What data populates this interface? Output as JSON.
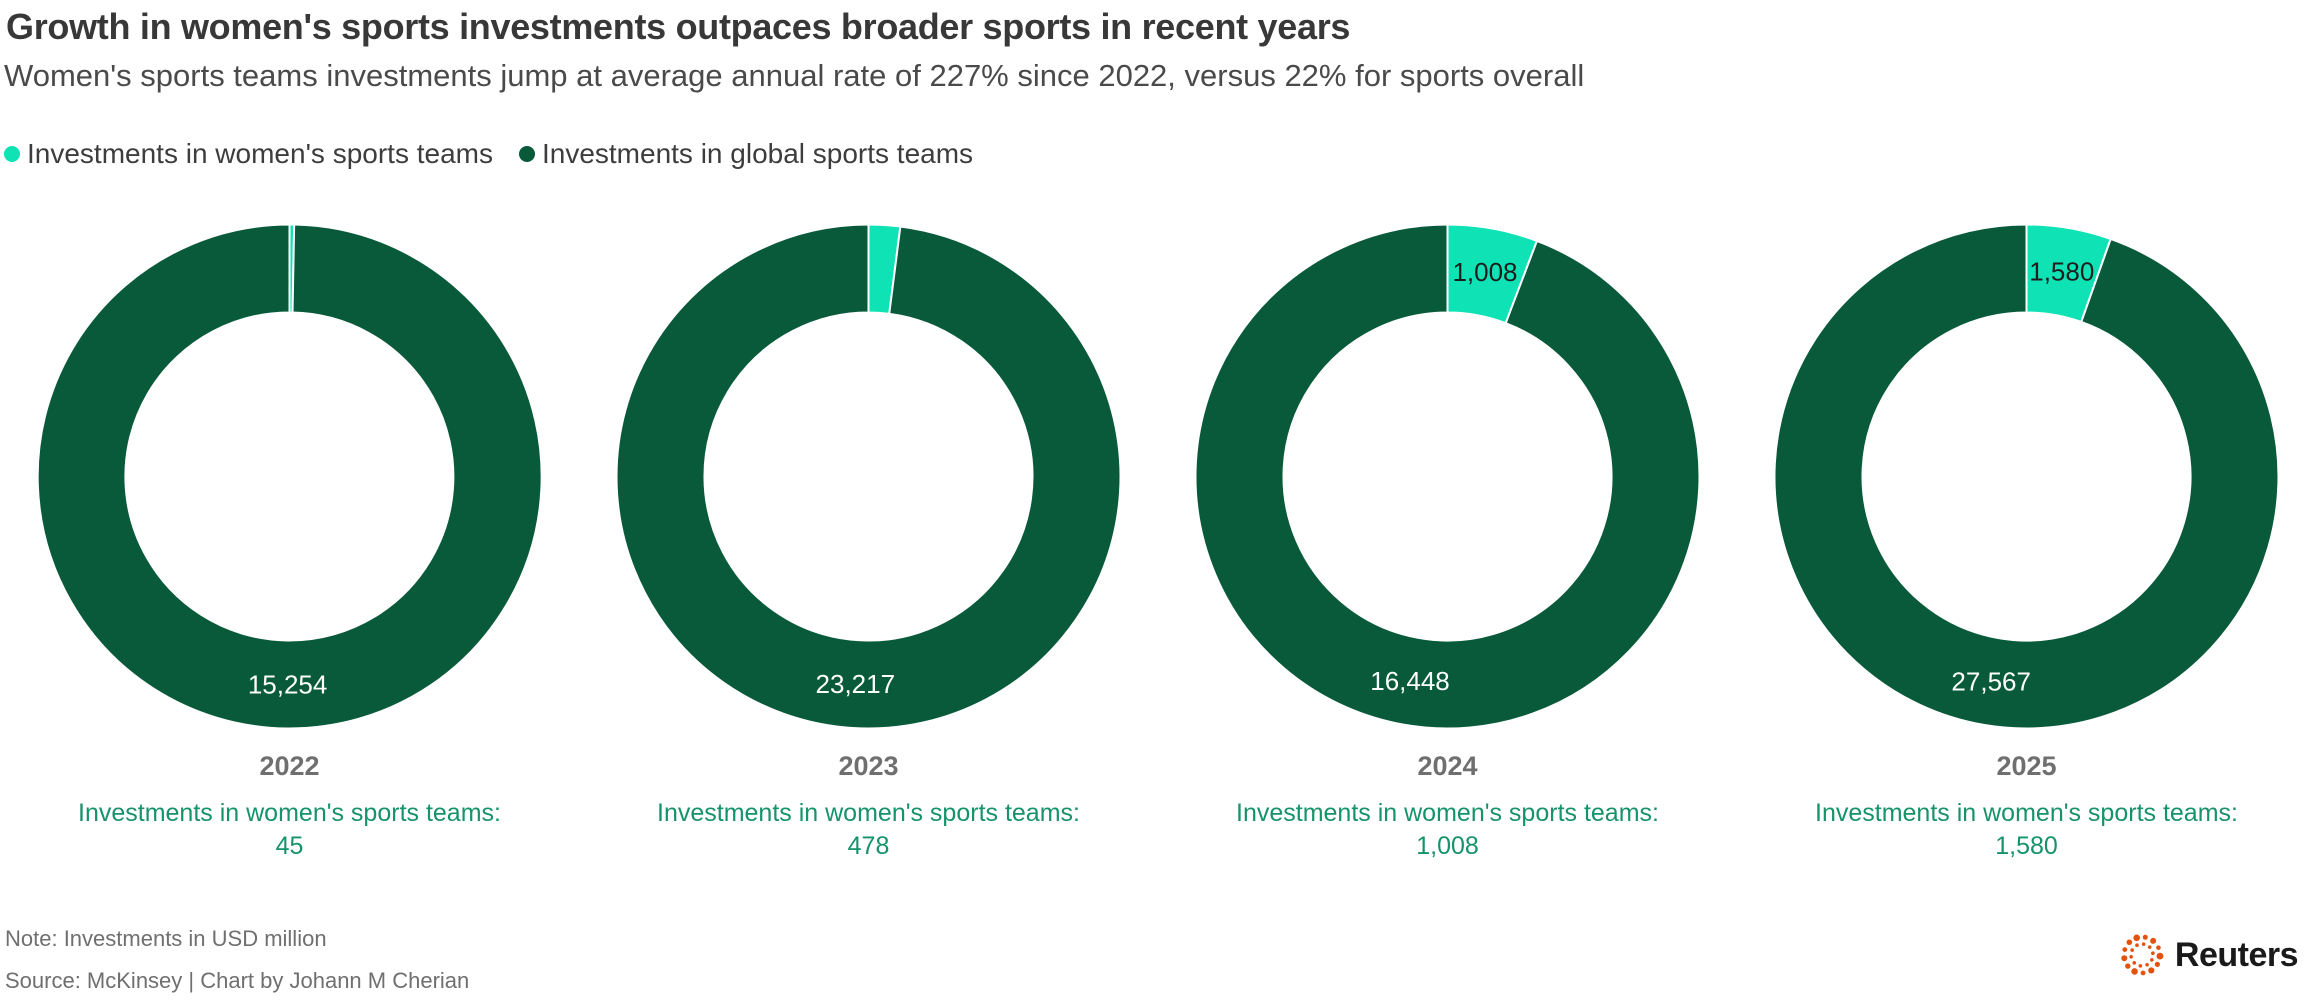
{
  "header": {
    "title": "Growth in women's sports investments outpaces broader sports in recent years",
    "subtitle": "Women's sports teams investments jump at average annual rate of 227% since 2022, versus 22% for sports overall"
  },
  "legend": [
    {
      "label": "Investments in women's sports teams",
      "color": "#0fe3b6"
    },
    {
      "label": "Investments in global sports teams",
      "color": "#095a3a"
    }
  ],
  "chart_data": {
    "type": "pie",
    "subtype": "donut",
    "unit": "USD million",
    "caption": "Investments in women's sports teams:",
    "colors": {
      "women": "#0fe3b6",
      "global": "#095a3a"
    },
    "series_names": [
      "Investments in women's sports teams",
      "Investments in global sports teams"
    ],
    "charts": [
      {
        "year": "2022",
        "women": 45,
        "global": 15254,
        "women_label": "45",
        "global_label": "15,254",
        "slice_label": null
      },
      {
        "year": "2023",
        "women": 478,
        "global": 23217,
        "women_label": "478",
        "global_label": "23,217",
        "slice_label": null
      },
      {
        "year": "2024",
        "women": 1008,
        "global": 16448,
        "women_label": "1,008",
        "global_label": "16,448",
        "slice_label": "1,008"
      },
      {
        "year": "2025",
        "women": 1580,
        "global": 27567,
        "women_label": "1,580",
        "global_label": "27,567",
        "slice_label": "1,580"
      }
    ]
  },
  "footer": {
    "note": "Note: Investments in USD million",
    "source": "Source: McKinsey | Chart by Johann M Cherian",
    "logo_text": "Reuters",
    "logo_color": "#e4510b",
    "logo_text_color": "#1a1a1a"
  }
}
